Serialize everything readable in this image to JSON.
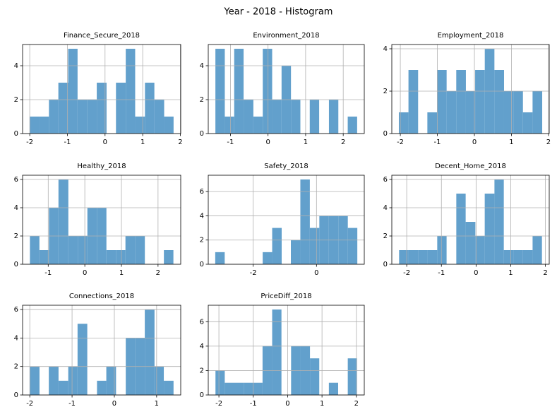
{
  "title": "Year - 2018 - Histogram",
  "chart_data": [
    {
      "type": "histogram",
      "title": "Finance_Secure_2018",
      "color": "#62a0cc",
      "grid": true,
      "bins": [
        -2.0,
        -1.75,
        -1.49,
        -1.24,
        -0.98,
        -0.73,
        -0.47,
        -0.22,
        0.04,
        0.29,
        0.55,
        0.8,
        1.06,
        1.31,
        1.57,
        1.82
      ],
      "counts": [
        1,
        1,
        2,
        3,
        5,
        2,
        2,
        3,
        0,
        3,
        5,
        1,
        3,
        2,
        1
      ],
      "xlim": [
        -2.19,
        2.01
      ],
      "xticks": [
        -2,
        -1,
        0,
        1,
        2
      ],
      "ylim": [
        0,
        5.25
      ],
      "yticks": [
        0,
        2,
        4
      ]
    },
    {
      "type": "histogram",
      "title": "Environment_2018",
      "color": "#62a0cc",
      "grid": true,
      "bins": [
        -1.4,
        -1.15,
        -0.9,
        -0.65,
        -0.39,
        -0.14,
        0.11,
        0.36,
        0.61,
        0.86,
        1.11,
        1.36,
        1.62,
        1.87,
        2.12,
        2.37
      ],
      "counts": [
        5,
        1,
        5,
        2,
        1,
        5,
        2,
        4,
        2,
        0,
        2,
        0,
        2,
        0,
        1
      ],
      "xlim": [
        -1.59,
        2.56
      ],
      "xticks": [
        -1,
        0,
        1,
        2
      ],
      "ylim": [
        0,
        5.25
      ],
      "yticks": [
        0,
        2,
        4
      ]
    },
    {
      "type": "histogram",
      "title": "Employment_2018",
      "color": "#62a0cc",
      "grid": true,
      "bins": [
        -2.04,
        -1.78,
        -1.52,
        -1.27,
        -1.01,
        -0.75,
        -0.49,
        -0.23,
        0.02,
        0.28,
        0.54,
        0.8,
        1.06,
        1.31,
        1.57,
        1.83
      ],
      "counts": [
        1,
        3,
        0,
        1,
        3,
        2,
        3,
        2,
        3,
        4,
        3,
        2,
        2,
        1,
        2
      ],
      "xlim": [
        -2.23,
        2.02
      ],
      "xticks": [
        -2,
        -1,
        0,
        1,
        2
      ],
      "ylim": [
        0,
        4.2
      ],
      "yticks": [
        0,
        2,
        4
      ]
    },
    {
      "type": "histogram",
      "title": "Healthy_2018",
      "color": "#62a0cc",
      "grid": true,
      "bins": [
        -1.5,
        -1.24,
        -0.98,
        -0.72,
        -0.45,
        -0.19,
        0.07,
        0.33,
        0.59,
        0.85,
        1.11,
        1.37,
        1.64,
        1.9,
        2.16,
        2.42
      ],
      "counts": [
        2,
        1,
        4,
        6,
        2,
        2,
        4,
        4,
        1,
        1,
        2,
        2,
        0,
        0,
        1
      ],
      "xlim": [
        -1.7,
        2.62
      ],
      "xticks": [
        -1,
        0,
        1,
        2
      ],
      "ylim": [
        0,
        6.3
      ],
      "yticks": [
        0,
        2,
        4,
        6
      ]
    },
    {
      "type": "histogram",
      "title": "Safety_2018",
      "color": "#62a0cc",
      "grid": true,
      "bins": [
        -3.2,
        -2.9,
        -2.6,
        -2.3,
        -2.0,
        -1.7,
        -1.4,
        -1.1,
        -0.81,
        -0.51,
        -0.21,
        0.09,
        0.39,
        0.69,
        0.99,
        1.29
      ],
      "counts": [
        1,
        0,
        0,
        0,
        0,
        1,
        3,
        0,
        2,
        7,
        3,
        4,
        4,
        4,
        3
      ],
      "xlim": [
        -3.42,
        1.51
      ],
      "xticks": [
        -2,
        0
      ],
      "ylim": [
        0,
        7.35
      ],
      "yticks": [
        0,
        2,
        4,
        6
      ]
    },
    {
      "type": "histogram",
      "title": "Decent_Home_2018",
      "color": "#62a0cc",
      "grid": true,
      "bins": [
        -2.22,
        -1.95,
        -1.67,
        -1.4,
        -1.12,
        -0.85,
        -0.57,
        -0.3,
        -0.02,
        0.25,
        0.53,
        0.8,
        1.08,
        1.35,
        1.63,
        1.9
      ],
      "counts": [
        1,
        1,
        1,
        1,
        2,
        0,
        5,
        3,
        2,
        5,
        6,
        1,
        1,
        1,
        2
      ],
      "xlim": [
        -2.43,
        2.11
      ],
      "xticks": [
        -2,
        -1,
        0,
        1,
        2
      ],
      "ylim": [
        0,
        6.3
      ],
      "yticks": [
        0,
        2,
        4,
        6
      ]
    },
    {
      "type": "histogram",
      "title": "Connections_2018",
      "color": "#62a0cc",
      "grid": true,
      "bins": [
        -2.0,
        -1.77,
        -1.55,
        -1.32,
        -1.09,
        -0.87,
        -0.64,
        -0.41,
        -0.19,
        0.04,
        0.27,
        0.49,
        0.72,
        0.95,
        1.17,
        1.4
      ],
      "counts": [
        2,
        0,
        2,
        1,
        2,
        5,
        0,
        1,
        2,
        0,
        4,
        4,
        6,
        2,
        1
      ],
      "xlim": [
        -2.17,
        1.57
      ],
      "xticks": [
        -2,
        -1,
        0,
        1
      ],
      "ylim": [
        0,
        6.3
      ],
      "yticks": [
        0,
        2,
        4,
        6
      ]
    },
    {
      "type": "histogram",
      "title": "PriceDiff_2018",
      "color": "#62a0cc",
      "grid": true,
      "bins": [
        -2.1,
        -1.83,
        -1.55,
        -1.28,
        -1.0,
        -0.73,
        -0.45,
        -0.18,
        0.1,
        0.37,
        0.65,
        0.92,
        1.2,
        1.47,
        1.75,
        2.02
      ],
      "counts": [
        2,
        1,
        1,
        1,
        1,
        4,
        7,
        0,
        4,
        4,
        3,
        0,
        1,
        0,
        3
      ],
      "xlim": [
        -2.31,
        2.23
      ],
      "xticks": [
        -2,
        -1,
        0,
        1,
        2
      ],
      "ylim": [
        0,
        7.35
      ],
      "yticks": [
        0,
        2,
        4,
        6
      ]
    }
  ]
}
